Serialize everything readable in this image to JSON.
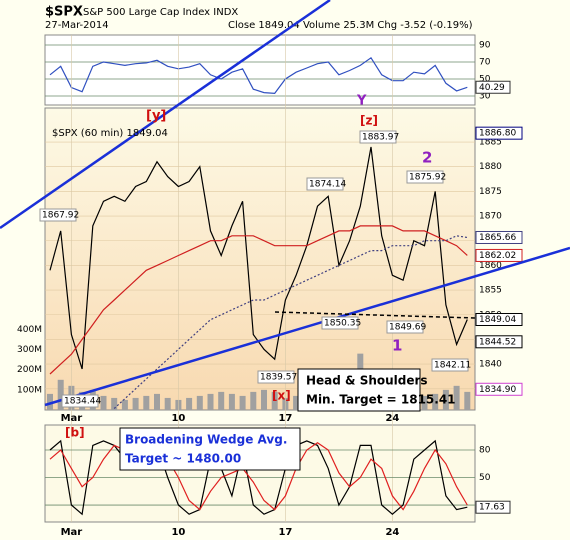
{
  "header": {
    "symbol": "$SPX",
    "name": "S&P 500 Large Cap Index INDX",
    "date": "27-Mar-2014",
    "quote": "Close 1849.04 Volume 25.3M Chg -3.52 (-0.19%)"
  },
  "chart_data": [
    {
      "type": "line",
      "ylim": [
        19.4,
        101.8
      ],
      "yticks": [
        90,
        70,
        50,
        30
      ],
      "last_value": 40.29,
      "series": [
        {
          "color": "#3050c0",
          "values": [
            55,
            65,
            40,
            35,
            65,
            70,
            68,
            66,
            68,
            69,
            72,
            65,
            62,
            64,
            68,
            55,
            50,
            58,
            62,
            38,
            34,
            33,
            50,
            58,
            63,
            68,
            70,
            55,
            60,
            66,
            75,
            55,
            48,
            48,
            58,
            56,
            66,
            45,
            36,
            40.29
          ]
        }
      ]
    },
    {
      "type": "line",
      "legend": "$SPX (60 min) 1849.04",
      "categories": [
        null,
        null,
        "Mar",
        null,
        null,
        null,
        null,
        null,
        null,
        null,
        null,
        null,
        "10",
        null,
        null,
        null,
        null,
        null,
        null,
        null,
        null,
        null,
        "17",
        null,
        null,
        null,
        null,
        null,
        null,
        null,
        null,
        null,
        "24",
        null,
        null,
        null,
        null,
        null,
        null,
        null
      ],
      "ylim": [
        1830.7,
        1891.9
      ],
      "yticks": [
        1885,
        1880,
        1875,
        1870,
        1865,
        1860,
        1855,
        1850,
        1845,
        1840,
        1835
      ],
      "right_labels": [
        {
          "value": 1886.8,
          "label": "1886.80"
        },
        {
          "value": 1865.66,
          "label": "1865.66"
        },
        {
          "value": 1862.02,
          "label": "1862.02"
        },
        {
          "value": 1849.04,
          "label": "1849.04"
        },
        {
          "value": 1844.52,
          "label": "1844.52"
        },
        {
          "value": 1834.9,
          "label": "1834.90"
        }
      ],
      "series": [
        {
          "color": "#000000",
          "values": [
            1859,
            1867,
            1846,
            1839,
            1868,
            1873,
            1874,
            1873,
            1876,
            1877,
            1881,
            1878,
            1876,
            1877,
            1880,
            1867,
            1862,
            1868,
            1873,
            1846,
            1843,
            1841,
            1853,
            1858,
            1864,
            1872,
            1874,
            1860,
            1865,
            1872,
            1884,
            1866,
            1858,
            1857,
            1865,
            1864,
            1875,
            1852,
            1844,
            1849.04
          ]
        },
        {
          "color": "#d02020",
          "values": [
            1838,
            1840,
            1842,
            1845,
            1848,
            1851,
            1853,
            1855,
            1857,
            1859,
            1860,
            1861,
            1862,
            1863,
            1864,
            1865,
            1865,
            1866,
            1866,
            1866,
            1865,
            1864,
            1864,
            1864,
            1864,
            1865,
            1866,
            1867,
            1867,
            1868,
            1868,
            1868,
            1868,
            1867,
            1867,
            1867,
            1866,
            1865,
            1864,
            1862.02
          ]
        },
        {
          "color": "#404080",
          "dashed": true,
          "values": [
            null,
            null,
            null,
            null,
            null,
            null,
            1831,
            1833,
            1835,
            1837,
            1839,
            1841,
            1843,
            1845,
            1847,
            1849,
            1850,
            1851,
            1852,
            1853,
            1853,
            1854,
            1855,
            1856,
            1857,
            1858,
            1859,
            1860,
            1861,
            1862,
            1863,
            1863,
            1864,
            1864,
            1864,
            1865,
            1865,
            1865,
            1866,
            1865.66
          ]
        }
      ],
      "volume": {
        "color": "#a0a0a0",
        "vlim": [
          0,
          450
        ],
        "vticks": [
          {
            "value": 400,
            "label": "400M"
          },
          {
            "value": 300,
            "label": "300M"
          },
          {
            "value": 200,
            "label": "200M"
          },
          {
            "value": 100,
            "label": "100M"
          }
        ],
        "values": [
          80,
          150,
          120,
          90,
          100,
          70,
          60,
          50,
          60,
          70,
          80,
          60,
          50,
          60,
          70,
          80,
          90,
          80,
          70,
          90,
          100,
          90,
          60,
          70,
          80,
          90,
          80,
          100,
          90,
          280,
          150,
          110,
          90,
          100,
          80,
          70,
          80,
          100,
          120,
          90
        ]
      },
      "annotations": [
        "[y]",
        "Y",
        "[z]",
        "1883.97",
        "1874.14",
        "1875.92",
        "1867.92",
        "2",
        "1850.35",
        "1849.69",
        "1839.57",
        "1834.44",
        "[x]",
        "1",
        "1842.11"
      ],
      "box": [
        "Head & Shoulders",
        "Min. Target = 1815.41"
      ]
    },
    {
      "type": "line",
      "ylim": [
        1.5,
        107.3
      ],
      "yticks": [
        80,
        50,
        20
      ],
      "last_value": 17.63,
      "annotations": [
        "[b]"
      ],
      "box": [
        "Broadening Wedge Avg.",
        "Target ~ 1480.00"
      ],
      "series": [
        {
          "color": "#000000",
          "values": [
            80,
            90,
            20,
            10,
            85,
            90,
            85,
            70,
            80,
            75,
            85,
            50,
            20,
            10,
            15,
            70,
            60,
            30,
            80,
            20,
            10,
            15,
            60,
            85,
            90,
            85,
            60,
            20,
            40,
            85,
            85,
            20,
            10,
            20,
            70,
            80,
            90,
            30,
            15,
            17.63
          ]
        },
        {
          "color": "#e02020",
          "values": [
            70,
            80,
            60,
            40,
            50,
            70,
            85,
            80,
            78,
            75,
            78,
            70,
            50,
            25,
            15,
            35,
            50,
            55,
            60,
            45,
            25,
            15,
            30,
            60,
            80,
            88,
            80,
            55,
            40,
            50,
            70,
            60,
            30,
            15,
            35,
            60,
            80,
            65,
            40,
            20
          ]
        }
      ]
    }
  ]
}
